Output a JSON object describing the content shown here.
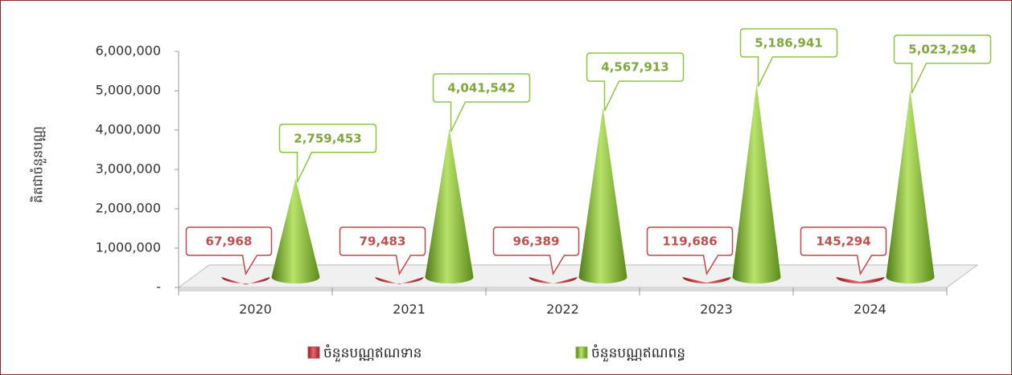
{
  "chart_data": {
    "type": "cone3d",
    "y_axis_label": "គិតជាចំនួនបណ្ណ",
    "categories": [
      "2020",
      "2021",
      "2022",
      "2023",
      "2024"
    ],
    "series": [
      {
        "name": "ចំនួនបណ្ណឥណទាន",
        "color": "#c8454a",
        "values": [
          67968,
          79483,
          96389,
          119686,
          145294
        ],
        "value_labels": [
          "67,968",
          "79,483",
          "96,389",
          "119,686",
          "145,294"
        ]
      },
      {
        "name": "ចំនួនបណ្ណឥណពន្ធ",
        "color": "#8dc63f",
        "values": [
          2759453,
          4041542,
          4567913,
          5186941,
          5023294
        ],
        "value_labels": [
          "2,759,453",
          "4,041,542",
          "4,567,913",
          "5,186,941",
          "5,023,294"
        ]
      }
    ],
    "ylim": [
      0,
      6000000
    ],
    "yticks": [
      {
        "value": 0,
        "label": "-"
      },
      {
        "value": 1000000,
        "label": "1,000,000"
      },
      {
        "value": 2000000,
        "label": "2,000,000"
      },
      {
        "value": 3000000,
        "label": "3,000,000"
      },
      {
        "value": 4000000,
        "label": "4,000,000"
      },
      {
        "value": 5000000,
        "label": "5,000,000"
      },
      {
        "value": 6000000,
        "label": "6,000,000"
      }
    ],
    "legend": "bottom"
  }
}
